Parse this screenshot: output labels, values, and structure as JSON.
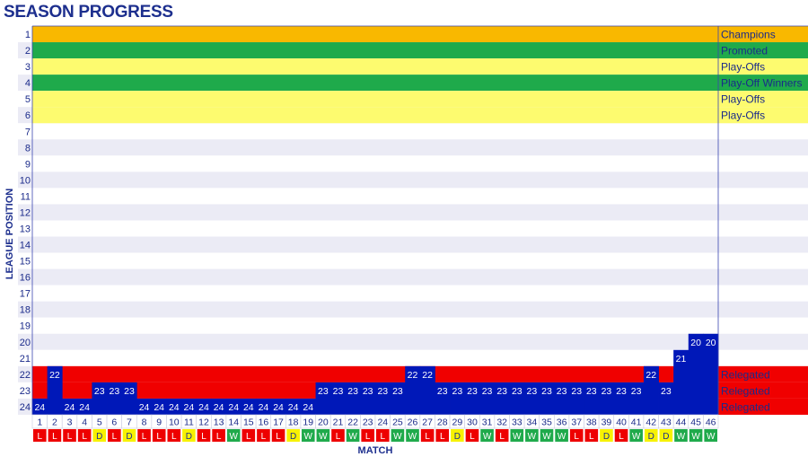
{
  "title": "SEASON PROGRESS",
  "colors": {
    "champions": "#f9b800",
    "promoted": "#1faa4b",
    "playoffs": "#fdfb6f",
    "relegated": "#f00000",
    "stripe": "#ebebf5",
    "bar": "#0018b8",
    "text": "#1a2a8a",
    "win": "#1faa4b",
    "draw": "#f7f200",
    "loss": "#ee0000"
  },
  "chart_data": {
    "type": "bar",
    "title": "SEASON PROGRESS",
    "xlabel": "MATCH",
    "ylabel": "LEAGUE POSITION",
    "y_axis_inverted": true,
    "ylim": [
      1,
      24
    ],
    "y_ticks": [
      "1",
      "2",
      "3",
      "4",
      "5",
      "6",
      "7",
      "8",
      "9",
      "10",
      "11",
      "12",
      "13",
      "14",
      "15",
      "16",
      "17",
      "18",
      "19",
      "20",
      "21",
      "22",
      "23",
      "24"
    ],
    "categories": [
      "1",
      "2",
      "3",
      "4",
      "5",
      "6",
      "7",
      "8",
      "9",
      "10",
      "11",
      "12",
      "13",
      "14",
      "15",
      "16",
      "17",
      "18",
      "19",
      "20",
      "21",
      "22",
      "23",
      "24",
      "25",
      "26",
      "27",
      "28",
      "29",
      "30",
      "31",
      "32",
      "33",
      "34",
      "35",
      "36",
      "37",
      "38",
      "39",
      "40",
      "41",
      "42",
      "43",
      "44",
      "45",
      "46"
    ],
    "series": [
      {
        "values": [
          24,
          22,
          24,
          24,
          23,
          23,
          23,
          24,
          24,
          24,
          24,
          24,
          24,
          24,
          24,
          24,
          24,
          24,
          24,
          23,
          23,
          23,
          23,
          23,
          23,
          22,
          22,
          23,
          23,
          23,
          23,
          23,
          23,
          23,
          23,
          23,
          23,
          23,
          23,
          23,
          23,
          22,
          23,
          21,
          20,
          20
        ],
        "value_labels": [
          "24",
          "22",
          "24",
          "24",
          "23",
          "23",
          "23",
          "24",
          "24",
          "24",
          "24",
          "24",
          "24",
          "24",
          "24",
          "24",
          "24",
          "24",
          "24",
          "23",
          "23",
          "23",
          "23",
          "23",
          "23",
          "22",
          "22",
          "23",
          "23",
          "23",
          "23",
          "23",
          "23",
          "23",
          "23",
          "23",
          "23",
          "23",
          "23",
          "23",
          "23",
          "22",
          "23",
          "21",
          "20",
          "20"
        ]
      }
    ],
    "results": [
      "L",
      "L",
      "L",
      "L",
      "D",
      "L",
      "D",
      "L",
      "L",
      "L",
      "D",
      "L",
      "L",
      "W",
      "L",
      "L",
      "L",
      "D",
      "W",
      "W",
      "L",
      "W",
      "L",
      "L",
      "W",
      "W",
      "L",
      "L",
      "D",
      "L",
      "W",
      "L",
      "W",
      "W",
      "W",
      "W",
      "L",
      "L",
      "D",
      "L",
      "W",
      "D",
      "D",
      "W",
      "W",
      "W"
    ],
    "zones": [
      {
        "positions": [
          1
        ],
        "label": "Champions",
        "type": "champions"
      },
      {
        "positions": [
          2
        ],
        "label": "Promoted",
        "type": "promoted"
      },
      {
        "positions": [
          3
        ],
        "label": "Play-Offs",
        "type": "playoffs"
      },
      {
        "positions": [
          4
        ],
        "label": "Play-Off Winners",
        "type": "promoted"
      },
      {
        "positions": [
          5
        ],
        "label": "Play-Offs",
        "type": "playoffs"
      },
      {
        "positions": [
          6
        ],
        "label": "Play-Offs",
        "type": "playoffs"
      },
      {
        "positions": [
          22
        ],
        "label": "Relegated",
        "type": "relegated"
      },
      {
        "positions": [
          23
        ],
        "label": "Relegated",
        "type": "relegated"
      },
      {
        "positions": [
          24
        ],
        "label": "Relegated",
        "type": "relegated"
      }
    ],
    "grid": "alternating row stripes",
    "legend": "right"
  }
}
